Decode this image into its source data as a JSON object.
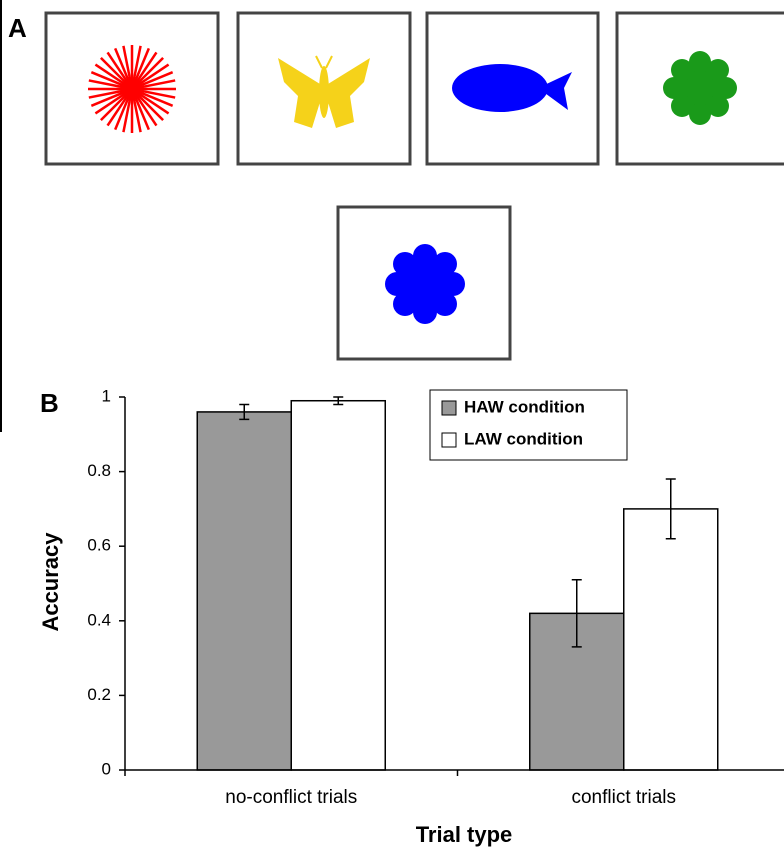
{
  "panel_labels": [
    "A",
    "B"
  ],
  "chart_data": {
    "type": "bar",
    "x_label": "Trial type",
    "y_label": "Accuracy",
    "categories": [
      "no-conflict trials",
      "conflict trials"
    ],
    "series": [
      {
        "name": "HAW condition",
        "color": "#999999",
        "values": [
          0.96,
          0.42
        ],
        "errors": [
          0.02,
          0.09
        ]
      },
      {
        "name": "LAW condition",
        "color": "#ffffff",
        "values": [
          0.99,
          0.7
        ],
        "errors": [
          0.01,
          0.08
        ]
      }
    ],
    "ylim": [
      0,
      1
    ],
    "yticks": [
      0,
      0.2,
      0.4,
      0.6,
      0.8,
      1
    ],
    "legend": "upper-right",
    "grid": false
  }
}
